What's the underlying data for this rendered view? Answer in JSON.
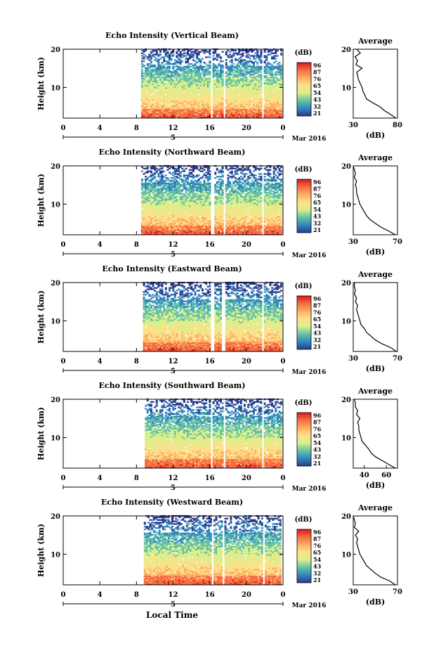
{
  "figure": {
    "bottom_xlabel": "Local Time",
    "date_label": "Mar 2016",
    "day_label": "5",
    "colorbar_unit": "(dB)",
    "colorbar_ticks": [
      "96",
      "87",
      "76",
      "65",
      "54",
      "43",
      "32",
      "21"
    ],
    "colorbar_colors": [
      "#d7191c",
      "#f46d43",
      "#fdae61",
      "#fee08b",
      "#d9ef8b",
      "#66c2a5",
      "#3288bd",
      "#2b3a8f"
    ]
  },
  "chart_data": [
    {
      "type": "heatmap",
      "title": "Echo Intensity (Vertical Beam)",
      "ylabel": "Height (km)",
      "x_ticks": [
        "0",
        "4",
        "8",
        "12",
        "16",
        "20",
        "0"
      ],
      "xlim": [
        0,
        24
      ],
      "y_ticks": [
        "20",
        "10"
      ],
      "ylim": [
        2,
        20
      ],
      "colorbar": {
        "unit": "(dB)",
        "range": [
          21,
          96
        ]
      },
      "data_start_hour": 8.5,
      "gaps_hours": [
        [
          16.0,
          16.2
        ],
        [
          17.3,
          17.6
        ],
        [
          21.5,
          21.7
        ]
      ],
      "profile": {
        "title": "Average",
        "xlabel": "(dB)",
        "x_ticks": [
          "30",
          "80"
        ],
        "xlim": [
          30,
          80
        ],
        "y_ticks": [
          "20",
          "10"
        ],
        "ylim": [
          2,
          20
        ],
        "heights": [
          2,
          3,
          4,
          5,
          6,
          7,
          8,
          9,
          10,
          11,
          12,
          13,
          14,
          15,
          16,
          17,
          18,
          19,
          20
        ],
        "values": [
          78,
          72,
          65,
          60,
          52,
          45,
          43,
          41,
          40,
          38,
          36,
          35,
          34,
          40,
          33,
          35,
          32,
          38,
          34
        ]
      }
    },
    {
      "type": "heatmap",
      "title": "Echo Intensity (Northward Beam)",
      "ylabel": "Height (km)",
      "x_ticks": [
        "0",
        "4",
        "8",
        "12",
        "16",
        "20",
        "0"
      ],
      "xlim": [
        0,
        24
      ],
      "y_ticks": [
        "20",
        "10"
      ],
      "ylim": [
        2,
        20
      ],
      "colorbar": {
        "unit": "(dB)",
        "range": [
          21,
          96
        ]
      },
      "data_start_hour": 8.5,
      "gaps_hours": [
        [
          16.0,
          16.3
        ],
        [
          17.3,
          17.6
        ],
        [
          21.6,
          21.8
        ]
      ],
      "profile": {
        "title": "Average",
        "xlabel": "(dB)",
        "x_ticks": [
          "30",
          "70"
        ],
        "xlim": [
          30,
          70
        ],
        "y_ticks": [
          "20",
          "10"
        ],
        "ylim": [
          2,
          20
        ],
        "heights": [
          2,
          3,
          4,
          5,
          6,
          7,
          8,
          9,
          10,
          11,
          12,
          13,
          14,
          15,
          16,
          17,
          18,
          19,
          20
        ],
        "values": [
          68,
          62,
          55,
          50,
          45,
          42,
          40,
          38,
          36,
          35,
          34,
          33,
          33,
          32,
          33,
          31,
          32,
          31,
          30
        ]
      }
    },
    {
      "type": "heatmap",
      "title": "Echo Intensity (Eastward Beam)",
      "ylabel": "Height (km)",
      "x_ticks": [
        "0",
        "4",
        "8",
        "12",
        "16",
        "20",
        "0"
      ],
      "xlim": [
        0,
        24
      ],
      "y_ticks": [
        "20",
        "10"
      ],
      "ylim": [
        2,
        20
      ],
      "colorbar": {
        "unit": "(dB)",
        "range": [
          21,
          96
        ]
      },
      "data_start_hour": 8.7,
      "gaps_hours": [
        [
          16.0,
          16.3
        ],
        [
          17.2,
          17.5
        ],
        [
          21.6,
          21.8
        ]
      ],
      "profile": {
        "title": "Average",
        "xlabel": "(dB)",
        "x_ticks": [
          "30",
          "70"
        ],
        "xlim": [
          30,
          70
        ],
        "y_ticks": [
          "20",
          "10"
        ],
        "ylim": [
          2,
          20
        ],
        "heights": [
          2,
          3,
          4,
          5,
          6,
          7,
          8,
          9,
          10,
          11,
          12,
          13,
          14,
          15,
          16,
          17,
          18,
          19,
          20
        ],
        "values": [
          69,
          64,
          56,
          50,
          46,
          42,
          40,
          37,
          36,
          35,
          34,
          33,
          34,
          32,
          33,
          31,
          32,
          31,
          31
        ]
      }
    },
    {
      "type": "heatmap",
      "title": "Echo Intensity (Southward Beam)",
      "ylabel": "Height (km)",
      "x_ticks": [
        "0",
        "4",
        "8",
        "12",
        "16",
        "20",
        "0"
      ],
      "xlim": [
        0,
        24
      ],
      "y_ticks": [
        "20",
        "10"
      ],
      "ylim": [
        2,
        20
      ],
      "colorbar": {
        "unit": "(dB)",
        "range": [
          21,
          96
        ]
      },
      "data_start_hour": 8.9,
      "gaps_hours": [
        [
          15.9,
          16.2
        ],
        [
          17.3,
          17.6
        ],
        [
          21.5,
          21.7
        ]
      ],
      "profile": {
        "title": "Average",
        "xlabel": "(dB)",
        "x_ticks": [
          "40",
          "60"
        ],
        "xlim": [
          30,
          70
        ],
        "y_ticks": [
          "20",
          "10"
        ],
        "ylim": [
          2,
          20
        ],
        "heights": [
          2,
          3,
          4,
          5,
          6,
          7,
          8,
          9,
          10,
          11,
          12,
          13,
          14,
          15,
          16,
          17,
          18,
          19,
          20
        ],
        "values": [
          68,
          62,
          56,
          50,
          46,
          44,
          41,
          38,
          37,
          36,
          35,
          35,
          34,
          36,
          33,
          34,
          32,
          32,
          31
        ]
      }
    },
    {
      "type": "heatmap",
      "title": "Echo Intensity (Westward Beam)",
      "ylabel": "Height (km)",
      "x_ticks": [
        "0",
        "4",
        "8",
        "12",
        "16",
        "20",
        "0"
      ],
      "xlim": [
        0,
        24
      ],
      "y_ticks": [
        "20",
        "10"
      ],
      "ylim": [
        2,
        20
      ],
      "colorbar": {
        "unit": "(dB)",
        "range": [
          21,
          96
        ]
      },
      "data_start_hour": 8.8,
      "gaps_hours": [
        [
          16.0,
          16.3
        ],
        [
          17.2,
          17.5
        ],
        [
          21.6,
          21.8
        ]
      ],
      "profile": {
        "title": "Average",
        "xlabel": "(dB)",
        "x_ticks": [
          "30",
          "70"
        ],
        "xlim": [
          30,
          70
        ],
        "y_ticks": [
          "20",
          "10"
        ],
        "ylim": [
          2,
          20
        ],
        "heights": [
          2,
          3,
          4,
          5,
          6,
          7,
          8,
          9,
          10,
          11,
          12,
          13,
          14,
          15,
          16,
          17,
          18,
          19,
          20
        ],
        "values": [
          68,
          63,
          55,
          50,
          46,
          42,
          40,
          38,
          36,
          35,
          34,
          33,
          34,
          32,
          35,
          31,
          32,
          31,
          30
        ]
      }
    }
  ]
}
